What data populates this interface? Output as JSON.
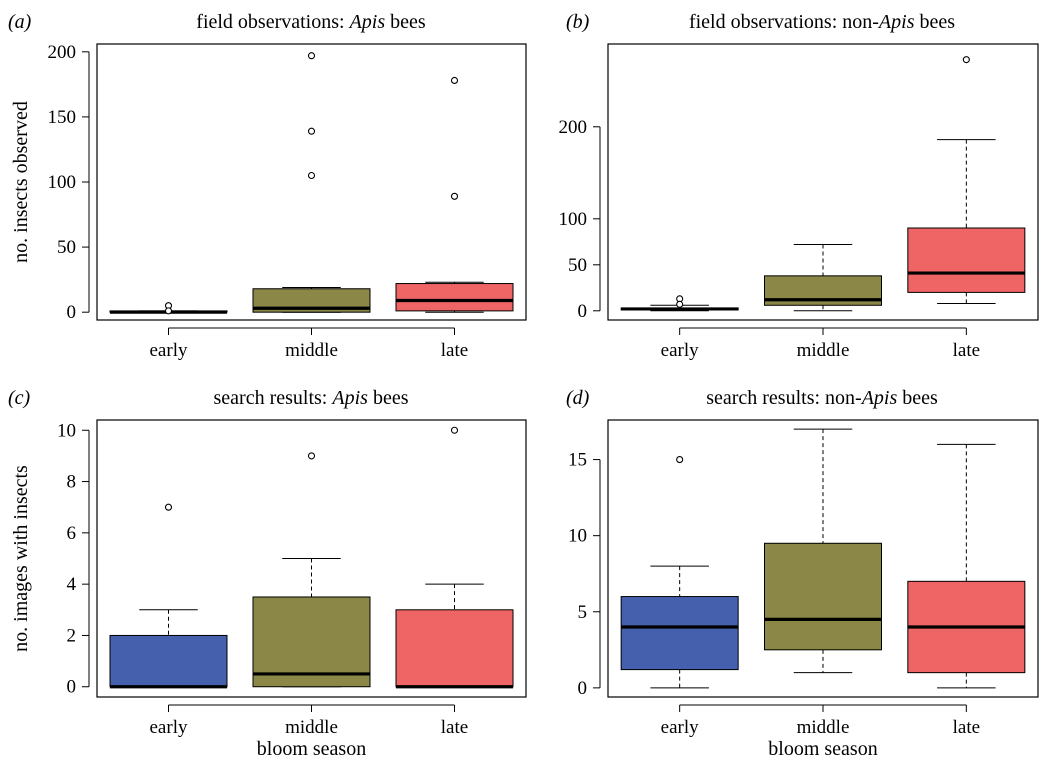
{
  "colors": {
    "early": "#4561ad",
    "middle": "#8a8747",
    "late": "#ef6464"
  },
  "chart_data": [
    {
      "panel": "(a)",
      "type": "box",
      "title_prefix": "field observations: ",
      "title_italic": "Apis",
      "title_suffix": " bees",
      "ylabel": "no. insects observed",
      "xlabel": "",
      "categories": [
        "early",
        "middle",
        "late"
      ],
      "ylim": [
        -6,
        206
      ],
      "yticks": [
        0,
        50,
        100,
        150,
        200
      ],
      "boxes": [
        {
          "whislo": 0,
          "q1": 0,
          "med": 0,
          "q3": 1,
          "whishi": 1,
          "fliers": [
            5,
            1
          ]
        },
        {
          "whislo": 0,
          "q1": 0,
          "med": 3,
          "q3": 18,
          "whishi": 19,
          "fliers": [
            197,
            139,
            105
          ]
        },
        {
          "whislo": 0,
          "q1": 1,
          "med": 9,
          "q3": 22,
          "whishi": 23,
          "fliers": [
            178,
            89
          ]
        }
      ]
    },
    {
      "panel": "(b)",
      "type": "box",
      "title_prefix": "field observations: non-",
      "title_italic": "Apis",
      "title_suffix": " bees",
      "ylabel": "",
      "xlabel": "",
      "categories": [
        "early",
        "middle",
        "late"
      ],
      "ylim": [
        -10,
        290
      ],
      "yticks": [
        0,
        50,
        100,
        200
      ],
      "boxes": [
        {
          "whislo": 0,
          "q1": 1,
          "med": 2,
          "q3": 3,
          "whishi": 6,
          "fliers": [
            13,
            7
          ]
        },
        {
          "whislo": 0,
          "q1": 6,
          "med": 12,
          "q3": 38,
          "whishi": 72,
          "fliers": []
        },
        {
          "whislo": 8,
          "q1": 20,
          "med": 41,
          "q3": 90,
          "whishi": 186,
          "fliers": [
            273
          ]
        }
      ]
    },
    {
      "panel": "(c)",
      "type": "box",
      "title_prefix": "search results: ",
      "title_italic": "Apis",
      "title_suffix": " bees",
      "ylabel": "no. images with insects",
      "xlabel": "bloom season",
      "categories": [
        "early",
        "middle",
        "late"
      ],
      "ylim": [
        -0.4,
        10.4
      ],
      "yticks": [
        0,
        2,
        4,
        6,
        8,
        10
      ],
      "boxes": [
        {
          "whislo": 0,
          "q1": 0,
          "med": 0,
          "q3": 2,
          "whishi": 3,
          "fliers": [
            7
          ]
        },
        {
          "whislo": 0,
          "q1": 0,
          "med": 0.5,
          "q3": 3.5,
          "whishi": 5,
          "fliers": [
            9
          ]
        },
        {
          "whislo": 0,
          "q1": 0,
          "med": 0,
          "q3": 3,
          "whishi": 4,
          "fliers": [
            10
          ]
        }
      ]
    },
    {
      "panel": "(d)",
      "type": "box",
      "title_prefix": "search results: non-",
      "title_italic": "Apis",
      "title_suffix": " bees",
      "ylabel": "",
      "xlabel": "bloom season",
      "categories": [
        "early",
        "middle",
        "late"
      ],
      "ylim": [
        -0.6,
        17.6
      ],
      "yticks": [
        0,
        5,
        10,
        15
      ],
      "boxes": [
        {
          "whislo": 0,
          "q1": 1.2,
          "med": 4,
          "q3": 6,
          "whishi": 8,
          "fliers": [
            15
          ]
        },
        {
          "whislo": 1,
          "q1": 2.5,
          "med": 4.5,
          "q3": 9.5,
          "whishi": 17,
          "fliers": []
        },
        {
          "whislo": 0,
          "q1": 1,
          "med": 4,
          "q3": 7,
          "whishi": 16,
          "fliers": []
        }
      ]
    }
  ]
}
